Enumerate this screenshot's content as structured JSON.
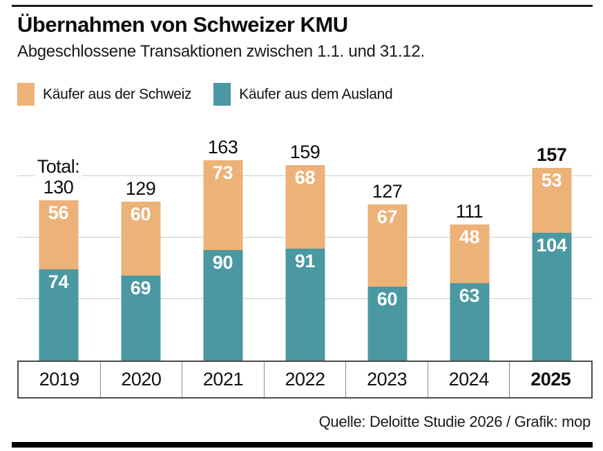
{
  "header": {
    "title": "Übernahmen von Schweizer KMU",
    "subtitle": "Abgeschlossene Transaktionen zwischen 1.1. und 31.12."
  },
  "legend": [
    {
      "label": "Käufer aus der Schweiz",
      "color": "#ecb278"
    },
    {
      "label": "Käufer aus dem Ausland",
      "color": "#4a98a2"
    }
  ],
  "chart_data": {
    "type": "bar",
    "stacked": true,
    "title": "Übernahmen von Schweizer KMU",
    "subtitle": "Abgeschlossene Transaktionen zwischen 1.1. und 31.12.",
    "categories": [
      "2019",
      "2020",
      "2021",
      "2022",
      "2023",
      "2024",
      "2025"
    ],
    "series": [
      {
        "name": "Käufer aus der Schweiz",
        "color": "#ecb278",
        "values": [
          56,
          60,
          73,
          68,
          67,
          48,
          53
        ]
      },
      {
        "name": "Käufer aus dem Ausland",
        "color": "#4a98a2",
        "values": [
          74,
          69,
          90,
          91,
          60,
          63,
          104
        ]
      }
    ],
    "totals": [
      130,
      129,
      163,
      159,
      127,
      111,
      157
    ],
    "total_label": "Total:",
    "highlight_category": "2025",
    "ylim": [
      0,
      198
    ],
    "gridlines": [
      50,
      100,
      150
    ],
    "grid": true,
    "legend_position": "top"
  },
  "footer": {
    "source": "Quelle: Deloitte Studie 2026 / Grafik: mop"
  },
  "colors": {
    "swiss": "#ecb278",
    "foreign": "#4a98a2",
    "grid": "#cccccc",
    "axis": "#4a4a4a",
    "rule": "#000000"
  }
}
